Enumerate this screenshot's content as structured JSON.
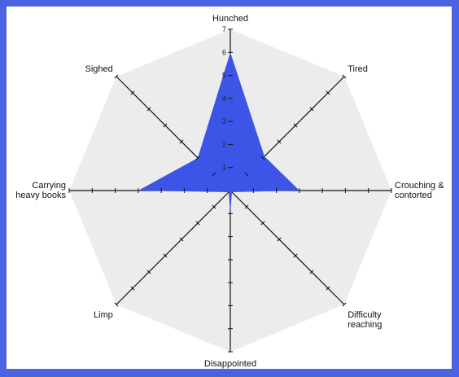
{
  "colors": {
    "frame": "#4a63e0",
    "background": "#ffffff",
    "octagon_fill": "#ececec",
    "series_fill": "#3d55e6",
    "axis": "#111111"
  },
  "chart_data": {
    "type": "radar",
    "title": "",
    "axes": [
      "Hunched",
      "Tired",
      "Crouching & contorted",
      "Difficulty reaching",
      "Disappointed",
      "Limp",
      "Carrying heavy books",
      "Sighed"
    ],
    "axis_label_lines": [
      [
        "Hunched"
      ],
      [
        "Tired"
      ],
      [
        "Crouching &",
        "contorted"
      ],
      [
        "Difficulty",
        "reaching"
      ],
      [
        "Disappointed"
      ],
      [
        "Limp"
      ],
      [
        "Carrying",
        "heavy books"
      ],
      [
        "Sighed"
      ]
    ],
    "range": [
      0,
      7
    ],
    "tick_labels": [
      "1",
      "2",
      "3",
      "4",
      "5",
      "6",
      "7"
    ],
    "grid": false,
    "series": [
      {
        "values": [
          6,
          2.1,
          3,
          0.1,
          1,
          0.1,
          4,
          2
        ]
      }
    ]
  }
}
